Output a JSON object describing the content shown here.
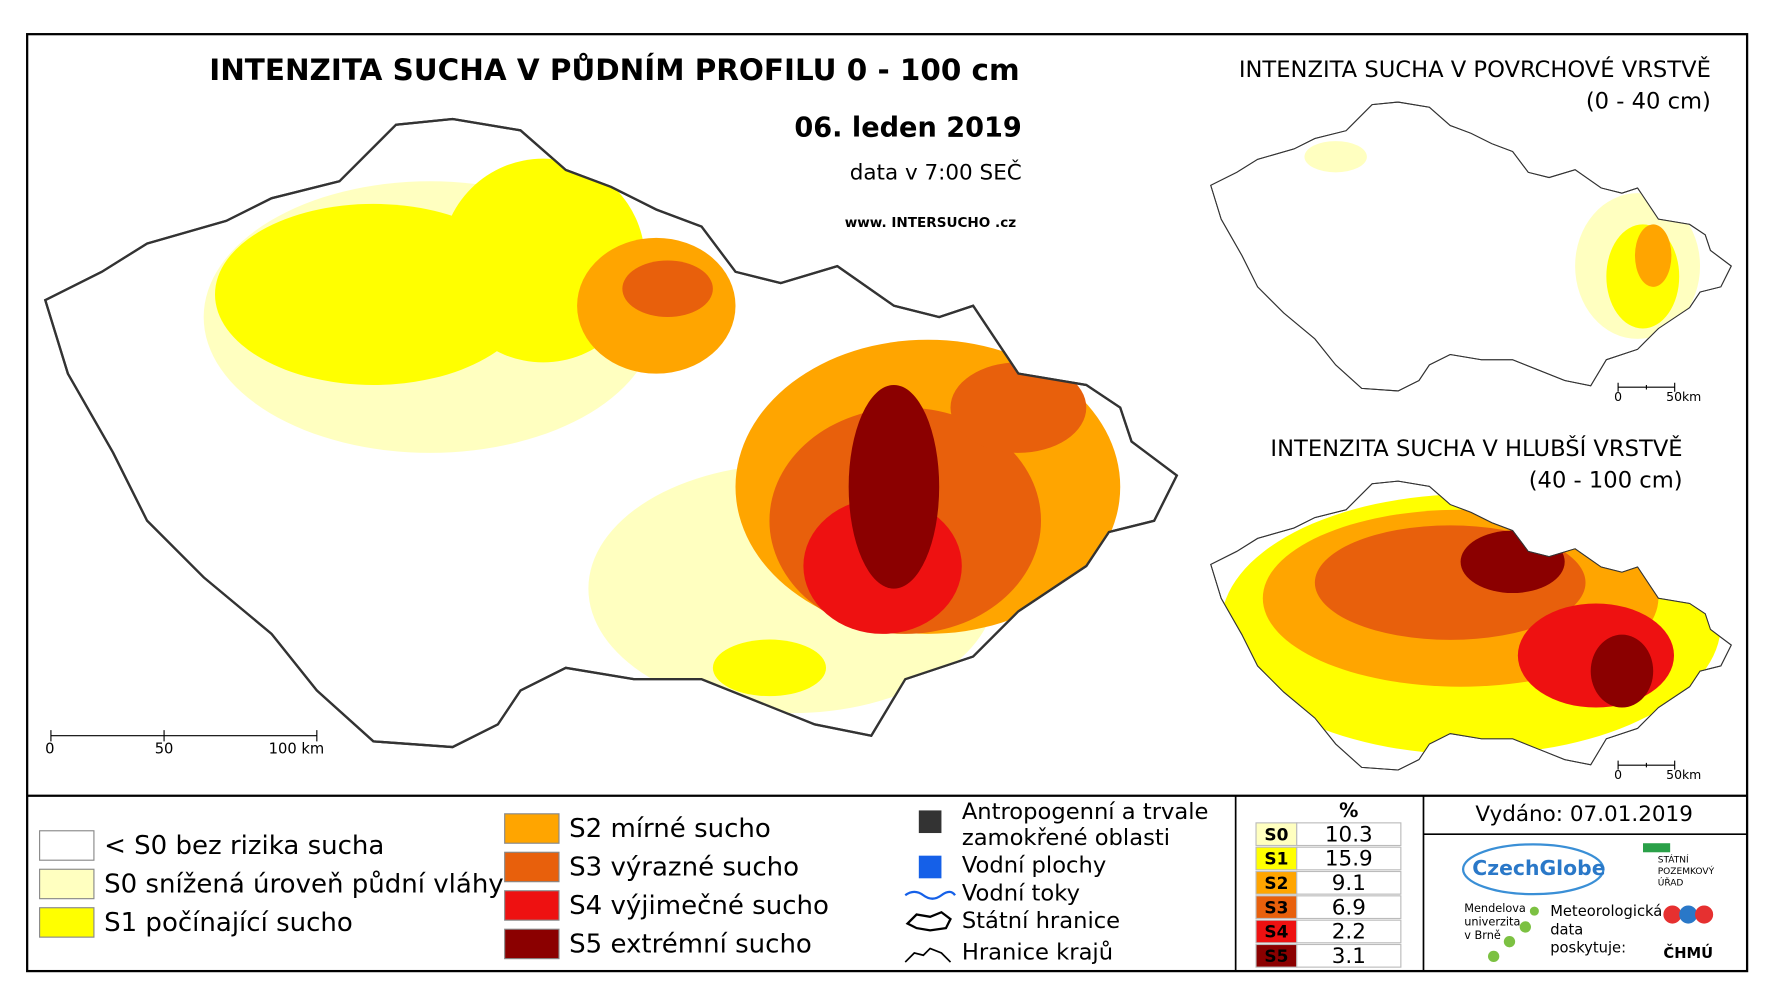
{
  "main_map": {
    "title": "INTENZITA SUCHA V PŮDNÍM PROFILU 0 - 100 cm",
    "date": "06. leden 2019",
    "data_time": "data v 7:00 SEČ",
    "website": "www. INTERSUCHO .cz",
    "scale_labels": [
      "0",
      "50",
      "100 km"
    ]
  },
  "inset_surface": {
    "title": "INTENZITA SUCHA V POVRCHOVÉ VRSTVĚ",
    "depth": "(0 - 40 cm)",
    "scale_labels": [
      "0",
      "50km"
    ]
  },
  "inset_deep": {
    "title": "INTENZITA SUCHA V HLUBŠÍ VRSTVĚ",
    "depth": "(40 - 100 cm)",
    "scale_labels": [
      "0",
      "50km"
    ]
  },
  "legend": {
    "classes": [
      {
        "label": "< S0 bez rizika sucha",
        "color": "#ffffff"
      },
      {
        "label": "S0 snížená úroveň půdní vláhy",
        "color": "#ffffc0"
      },
      {
        "label": "S1 počínající sucho",
        "color": "#ffff00"
      },
      {
        "label": "S2 mírné sucho",
        "color": "#ffa500"
      },
      {
        "label": "S3 výrazné sucho",
        "color": "#e8600c"
      },
      {
        "label": "S4 výjimečné sucho",
        "color": "#ee1111"
      },
      {
        "label": "S5 extrémní sucho",
        "color": "#8b0000"
      }
    ],
    "other": [
      "Antropogenní a trvale",
      "zamokřené oblasti",
      "Vodní plochy",
      "Vodní toky",
      "Státní hranice",
      "Hranice krajů"
    ]
  },
  "stats": {
    "header": "%",
    "rows": [
      {
        "class": "S0",
        "percent": 10.3
      },
      {
        "class": "S1",
        "percent": 15.9
      },
      {
        "class": "S2",
        "percent": 9.1
      },
      {
        "class": "S3",
        "percent": 6.9
      },
      {
        "class": "S4",
        "percent": 2.2
      },
      {
        "class": "S5",
        "percent": 3.1
      }
    ]
  },
  "footer": {
    "issued": "Vydáno: 07.01.2019",
    "czechglobe": "CzechGlobe",
    "spu": [
      "STÁTNÍ",
      "POZEMKOVÝ",
      "ÚŘAD"
    ],
    "mendel": [
      "Mendelova",
      "univerzita",
      "v Brně"
    ],
    "chmu_note": [
      "Meteorologická",
      "data",
      "poskytuje:"
    ],
    "chmu": "ČHMÚ"
  }
}
